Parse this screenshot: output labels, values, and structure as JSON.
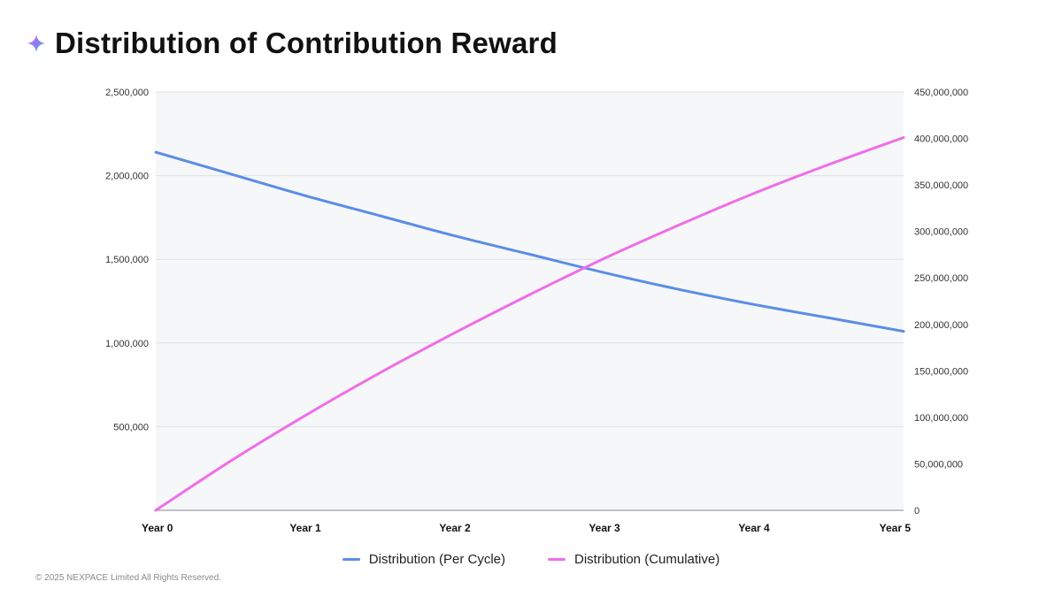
{
  "page": {
    "title": "Distribution of Contribution Reward",
    "footer": "© 2025 NEXPACE Limited All Rights Reserved.",
    "logo_icon": "sparkle-icon"
  },
  "colors": {
    "series_per_cycle": "#5b8de6",
    "series_cumulative": "#ef6ee8",
    "plot_bg": "#f5f7f9",
    "grid": "#dde1e5",
    "baseline": "#888888"
  },
  "chart_data": {
    "type": "line",
    "title": "Distribution of Contribution Reward",
    "categories": [
      "Year 0",
      "Year 1",
      "Year 2",
      "Year 3",
      "Year 4",
      "Year 5"
    ],
    "x": [
      0,
      1,
      2,
      3,
      4,
      5
    ],
    "y_left": {
      "range": [
        0,
        2500000
      ],
      "ticks": [
        500000,
        1000000,
        1500000,
        2000000,
        2500000
      ],
      "tick_labels": [
        "500,000",
        "1,000,000",
        "1,500,000",
        "2,000,000",
        "2,500,000"
      ]
    },
    "y_right": {
      "range": [
        0,
        450000000
      ],
      "ticks": [
        0,
        50000000,
        100000000,
        150000000,
        200000000,
        250000000,
        300000000,
        350000000,
        400000000,
        450000000
      ],
      "tick_labels": [
        "0",
        "50,000,000",
        "100,000,000",
        "150,000,000",
        "200,000,000",
        "250,000,000",
        "300,000,000",
        "350,000,000",
        "400,000,000",
        "450,000,000"
      ]
    },
    "series": [
      {
        "name": "Distribution (Per Cycle)",
        "axis": "left",
        "x": [
          0,
          0.5,
          1,
          1.5,
          2,
          2.5,
          3,
          3.5,
          4,
          4.5,
          5
        ],
        "values": [
          2140000,
          2010000,
          1880000,
          1760000,
          1640000,
          1530000,
          1420000,
          1320000,
          1230000,
          1150000,
          1070000
        ]
      },
      {
        "name": "Distribution (Cumulative)",
        "axis": "right",
        "x": [
          0,
          0.5,
          1,
          1.5,
          2,
          2.5,
          3,
          3.5,
          4,
          4.5,
          5
        ],
        "values": [
          0,
          53000000,
          102000000,
          148000000,
          191000000,
          232000000,
          271000000,
          307000000,
          341000000,
          372000000,
          401000000
        ]
      }
    ],
    "legend_position": "bottom-center",
    "grid": true
  }
}
